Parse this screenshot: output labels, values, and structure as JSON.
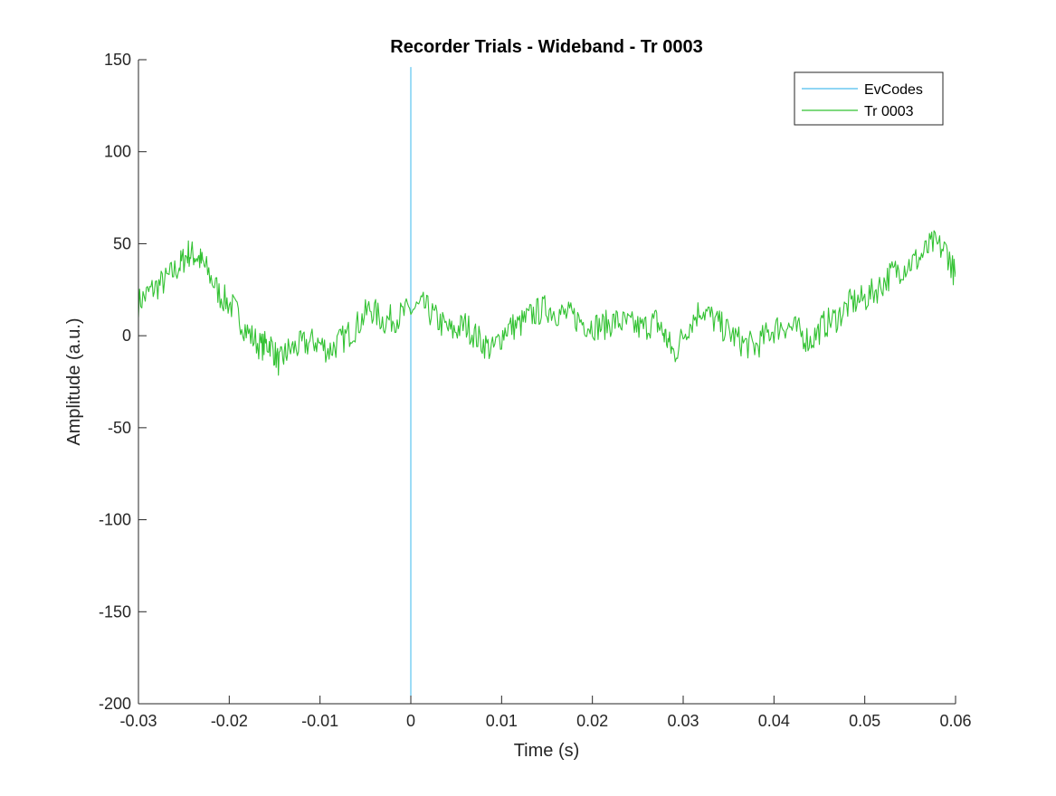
{
  "chart_data": {
    "type": "line",
    "title": "Recorder Trials - Wideband - Tr 0003",
    "xlabel": "Time (s)",
    "ylabel": "Amplitude (a.u.)",
    "xlim": [
      -0.03,
      0.06
    ],
    "ylim": [
      -200,
      150
    ],
    "xticks": [
      -0.03,
      -0.02,
      -0.01,
      0,
      0.01,
      0.02,
      0.03,
      0.04,
      0.05,
      0.06
    ],
    "xtick_labels": [
      "-0.03",
      "-0.02",
      "-0.01",
      "0",
      "0.01",
      "0.02",
      "0.03",
      "0.04",
      "0.05",
      "0.06"
    ],
    "yticks": [
      -200,
      -150,
      -100,
      -50,
      0,
      50,
      100,
      150
    ],
    "ytick_labels": [
      "-200",
      "-150",
      "-100",
      "-50",
      "0",
      "50",
      "100",
      "150"
    ],
    "grid": false,
    "legend_position": "top-right",
    "series": [
      {
        "name": "EvCodes",
        "color": "#4DBEEE",
        "x": [
          0,
          0
        ],
        "y": [
          -196,
          146
        ]
      },
      {
        "name": "Tr 0003",
        "color": "#33C233",
        "x": [
          -0.03,
          -0.0285,
          -0.027,
          -0.0255,
          -0.0245,
          -0.0235,
          -0.0225,
          -0.021,
          -0.0195,
          -0.018,
          -0.0165,
          -0.0155,
          -0.0145,
          -0.0135,
          -0.012,
          -0.0105,
          -0.009,
          -0.0075,
          -0.006,
          -0.0045,
          -0.003,
          -0.0015,
          0,
          0.0015,
          0.003,
          0.0045,
          0.006,
          0.0075,
          0.009,
          0.0105,
          0.012,
          0.0135,
          0.015,
          0.0165,
          0.018,
          0.0195,
          0.021,
          0.0225,
          0.024,
          0.0255,
          0.027,
          0.028,
          0.029,
          0.0305,
          0.032,
          0.0335,
          0.035,
          0.0365,
          0.038,
          0.0395,
          0.041,
          0.0425,
          0.044,
          0.0455,
          0.047,
          0.0485,
          0.05,
          0.0515,
          0.053,
          0.0545,
          0.056,
          0.0575,
          0.059,
          0.06
        ],
        "y": [
          18,
          25,
          30,
          38,
          45,
          43,
          36,
          22,
          15,
          2,
          -6,
          -4,
          -15,
          -8,
          -5,
          -3,
          -8,
          -2,
          5,
          15,
          8,
          10,
          14,
          16,
          8,
          2,
          6,
          -2,
          -8,
          4,
          6,
          12,
          15,
          12,
          10,
          6,
          5,
          8,
          6,
          4,
          8,
          0,
          -10,
          5,
          15,
          8,
          2,
          -4,
          -6,
          2,
          6,
          3,
          -3,
          6,
          10,
          18,
          20,
          26,
          34,
          38,
          42,
          50,
          46,
          32
        ]
      }
    ]
  }
}
